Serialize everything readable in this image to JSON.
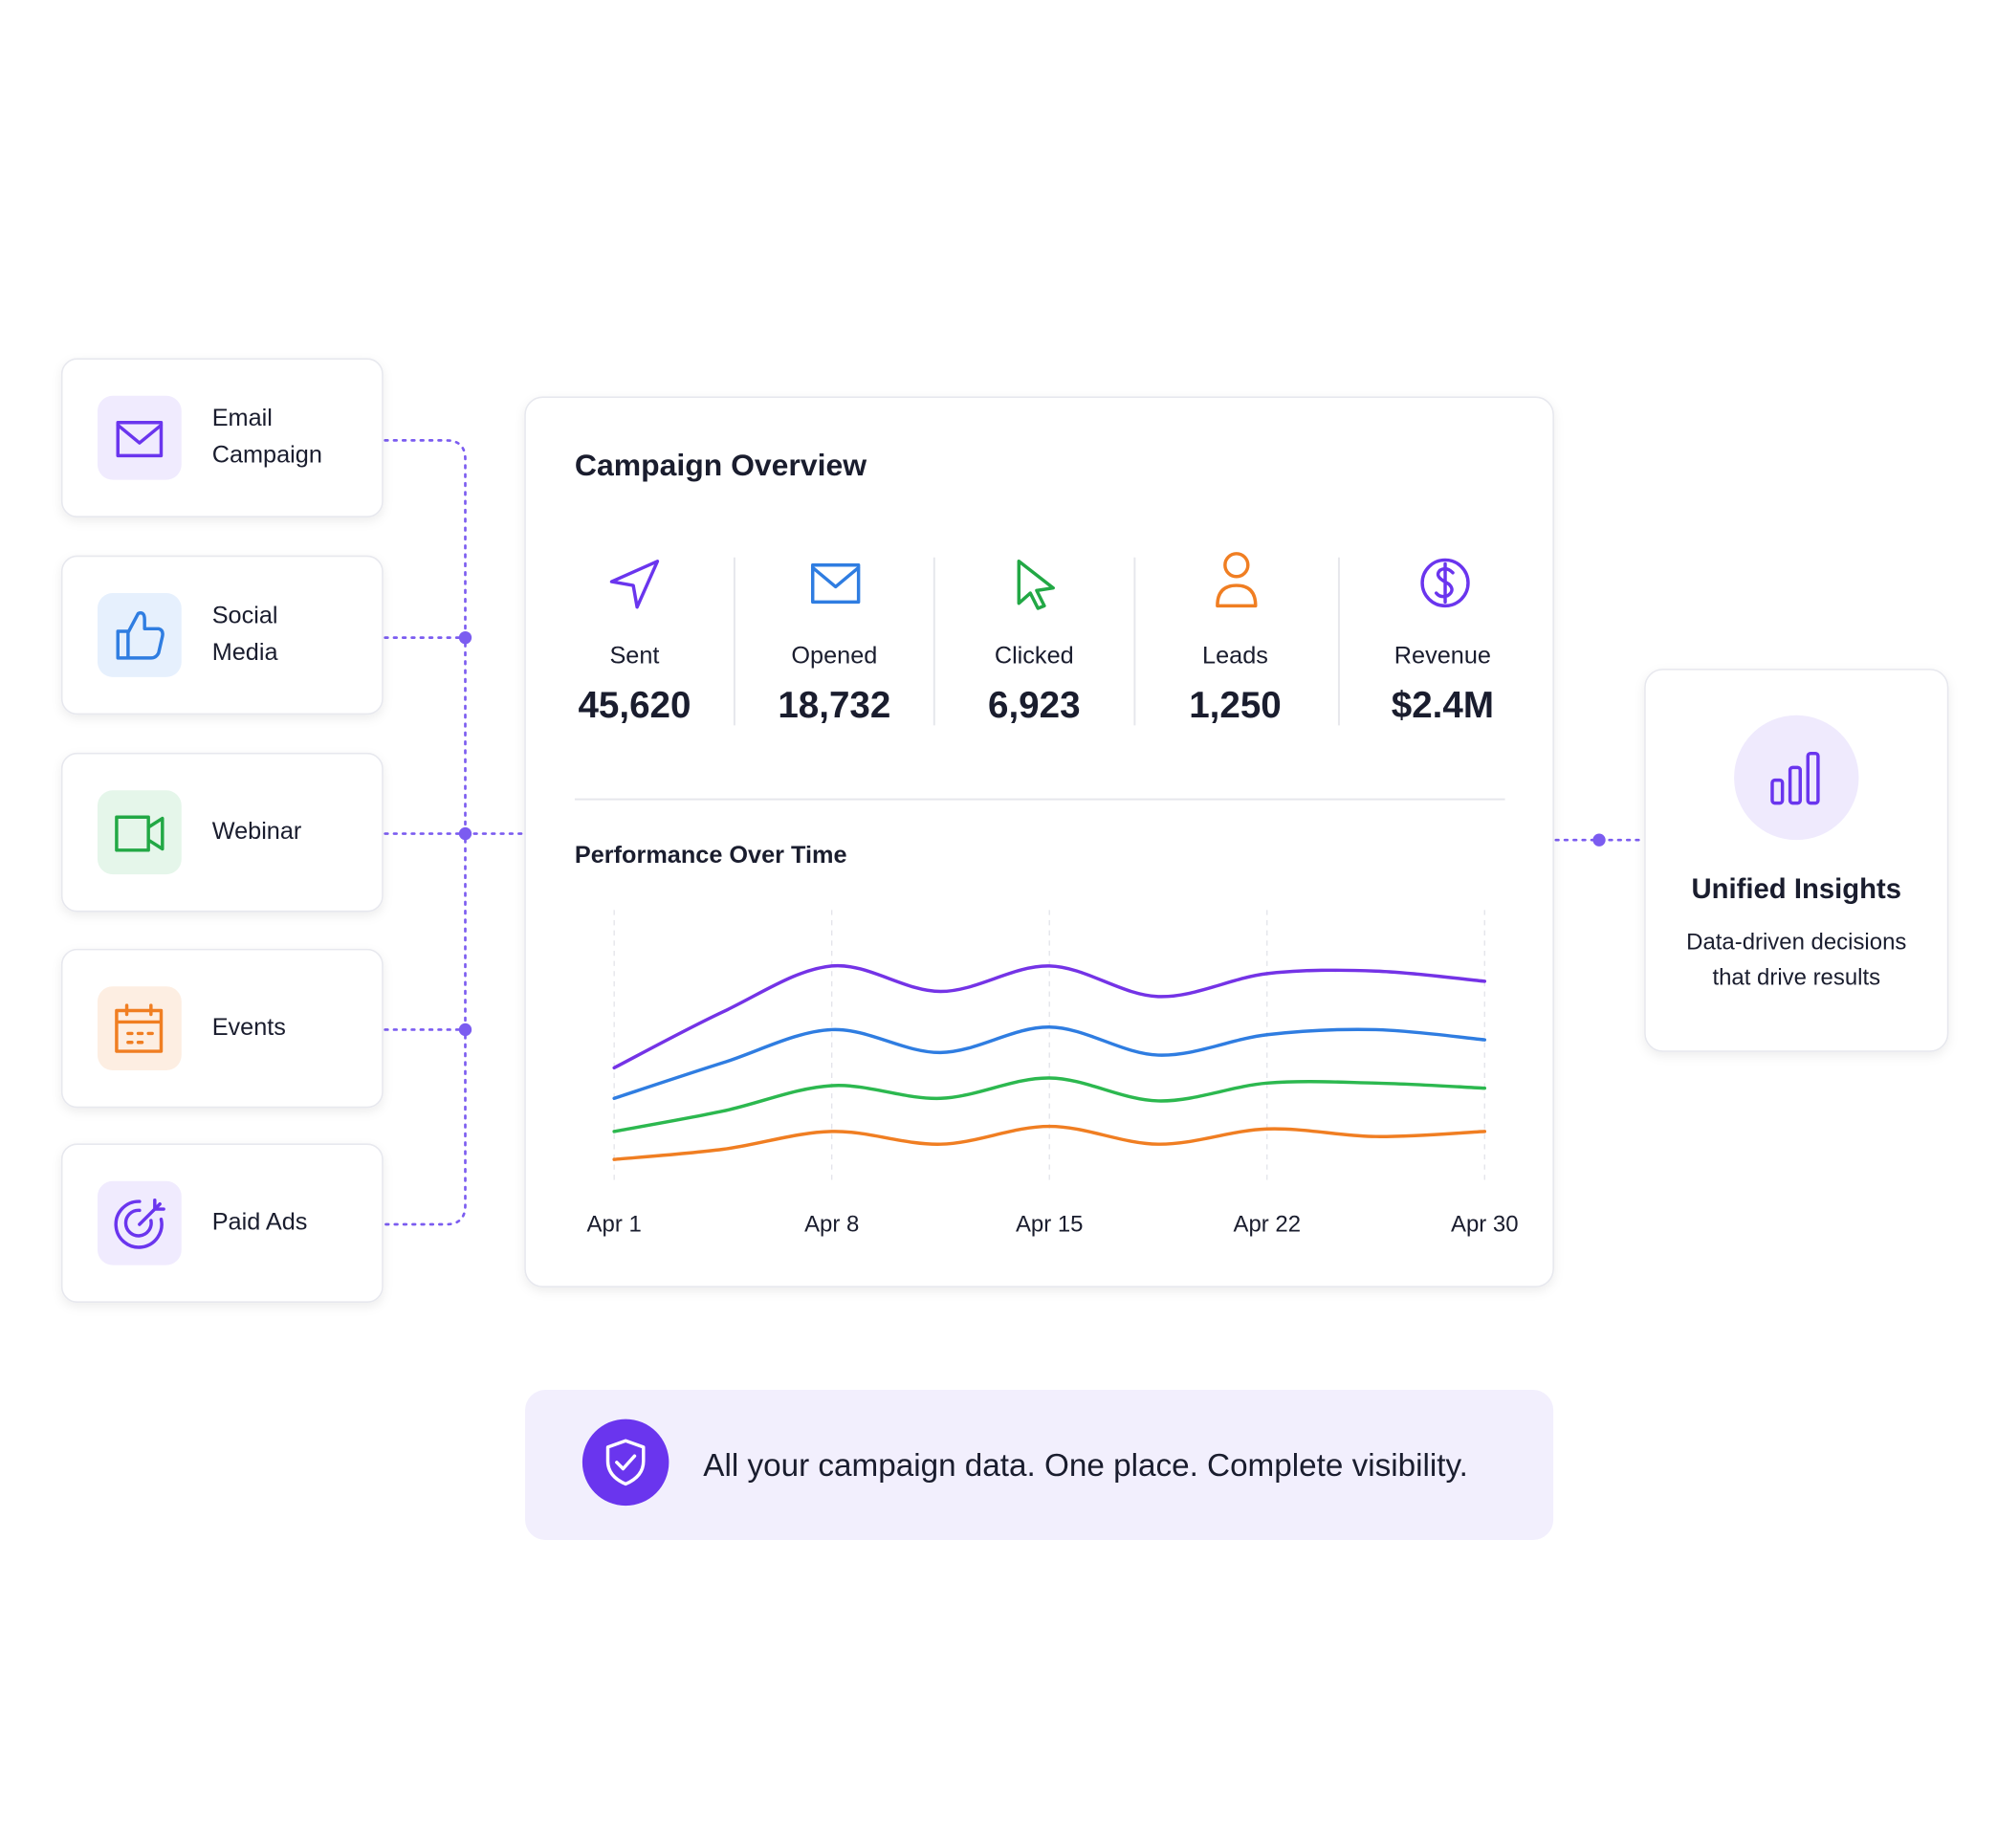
{
  "sources": [
    {
      "label": [
        "Email",
        "Campaign"
      ]
    },
    {
      "label": [
        "Social",
        "Media"
      ]
    },
    {
      "label": [
        "Webinar"
      ]
    },
    {
      "label": [
        "Events"
      ]
    },
    {
      "label": [
        "Paid Ads"
      ]
    }
  ],
  "overview": {
    "title": "Campaign Overview",
    "metrics": [
      {
        "label": "Sent",
        "value": "45,620"
      },
      {
        "label": "Opened",
        "value": "18,732"
      },
      {
        "label": "Clicked",
        "value": "6,923"
      },
      {
        "label": "Leads",
        "value": "1,250"
      },
      {
        "label": "Revenue",
        "value": "$2.4M"
      }
    ]
  },
  "chart_data": {
    "type": "line",
    "title": "Performance Over Time",
    "categories": [
      "Apr 1",
      null,
      "Apr 8",
      null,
      "Apr 15",
      null,
      "Apr 22",
      null,
      "Apr 30"
    ],
    "ylim": [
      0,
      100
    ],
    "series": [
      {
        "color": "#7433e6",
        "values": [
          38,
          60,
          78,
          68,
          78,
          66,
          75,
          76,
          72
        ]
      },
      {
        "color": "#2f7de1",
        "values": [
          26,
          40,
          53,
          44,
          54,
          43,
          51,
          53,
          49
        ]
      },
      {
        "color": "#2cb84f",
        "values": [
          13,
          21,
          31,
          26,
          34,
          25,
          32,
          32,
          30
        ]
      },
      {
        "color": "#f07e22",
        "values": [
          2,
          6,
          13,
          8,
          15,
          8,
          14,
          11,
          13
        ]
      }
    ]
  },
  "insights": {
    "title": "Unified Insights",
    "description": [
      "Data-driven decisions",
      "that drive results"
    ]
  },
  "banner": {
    "text": "All your campaign data. One place. Complete visibility."
  }
}
